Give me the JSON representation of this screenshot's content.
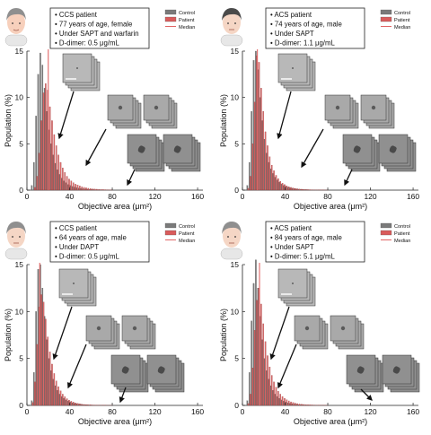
{
  "colors": {
    "control": "#7a7a7a",
    "patient": "#d95b5b",
    "median": "#e06666",
    "arrow": "#111111"
  },
  "chart_data": [
    {
      "type": "bar",
      "panel": "top-left",
      "patient_info": [
        "CCS patient",
        "77 years of age, female",
        "Under SAPT and warfarin",
        "D-dimer: 0.5 μg/mL"
      ],
      "legend": [
        "Control",
        "Patient",
        "Median"
      ],
      "xlabel": "Objective area (μm²)",
      "ylabel": "Population (%)",
      "xlim": [
        0,
        165
      ],
      "ylim": [
        0,
        15
      ],
      "xticks": [
        "0",
        "40",
        "80",
        "120",
        "160"
      ],
      "yticks": [
        "0",
        "5",
        "10",
        "15"
      ],
      "median_x": 20,
      "bin_width": 2,
      "series": [
        {
          "name": "Control",
          "values": [
            0,
            0,
            0.5,
            3.0,
            8.0,
            12.5,
            14.8,
            13.5,
            11.0,
            8.5,
            6.5,
            5.0,
            3.8,
            2.9,
            2.2,
            1.7,
            1.3,
            1.0,
            0.8,
            0.6,
            0.5,
            0.4,
            0.33,
            0.27,
            0.22,
            0.18,
            0.15,
            0.12,
            0.1,
            0.08,
            0.07,
            0.06,
            0.05,
            0.04,
            0.04,
            0.03,
            0.03,
            0.02,
            0.02,
            0.02
          ]
        },
        {
          "name": "Patient",
          "values": [
            0,
            0,
            0,
            0.3,
            1.5,
            4.0,
            7.5,
            10.5,
            11.5,
            10.8,
            9.0,
            7.5,
            6.0,
            4.8,
            3.8,
            3.0,
            2.4,
            1.9,
            1.5,
            1.2,
            1.0,
            0.8,
            0.65,
            0.55,
            0.45,
            0.37,
            0.3,
            0.25,
            0.2,
            0.17,
            0.14,
            0.12,
            0.1,
            0.08,
            0.07,
            0.06,
            0.05,
            0.04,
            0.03,
            0.03
          ]
        }
      ]
    },
    {
      "type": "bar",
      "panel": "top-right",
      "patient_info": [
        "ACS patient",
        "74 years of age, male",
        "Under SAPT",
        "D-dimer: 1.1 μg/mL"
      ],
      "legend": [
        "Control",
        "Patient",
        "Median"
      ],
      "xlabel": "Objective area (μm²)",
      "ylabel": "Population (%)",
      "xlim": [
        0,
        165
      ],
      "ylim": [
        0,
        15
      ],
      "xticks": [
        "0",
        "40",
        "80",
        "120",
        "160"
      ],
      "yticks": [
        "0",
        "5",
        "10",
        "15"
      ],
      "median_x": 14,
      "bin_width": 2,
      "series": [
        {
          "name": "Control",
          "values": [
            0,
            0,
            0.5,
            3.0,
            8.5,
            14.0,
            15.0,
            13.0,
            10.0,
            7.5,
            5.5,
            4.0,
            3.0,
            2.3,
            1.8,
            1.4,
            1.1,
            0.85,
            0.65,
            0.5,
            0.4,
            0.32,
            0.25,
            0.2,
            0.16,
            0.13,
            0.1,
            0.08,
            0.07,
            0.06,
            0.05,
            0.04,
            0.03,
            0.03,
            0.02,
            0.02,
            0.02,
            0.01,
            0.01,
            0.01
          ]
        },
        {
          "name": "Patient",
          "values": [
            0,
            0,
            0.2,
            1.5,
            5.0,
            9.5,
            14.5,
            13.8,
            11.0,
            8.5,
            6.3,
            4.8,
            3.6,
            2.7,
            2.1,
            1.6,
            1.25,
            0.95,
            0.75,
            0.6,
            0.47,
            0.37,
            0.3,
            0.24,
            0.19,
            0.15,
            0.12,
            0.1,
            0.08,
            0.07,
            0.06,
            0.05,
            0.04,
            0.03,
            0.03,
            0.02,
            0.02,
            0.02,
            0.01,
            0.01
          ]
        }
      ]
    },
    {
      "type": "bar",
      "panel": "bottom-left",
      "patient_info": [
        "CCS patient",
        "64 years of age, male",
        "Under DAPT",
        "D-dimer: 0.5 μg/mL"
      ],
      "legend": [
        "Control",
        "Patient",
        "Median"
      ],
      "xlabel": "Objective area (μm²)",
      "ylabel": "Population (%)",
      "xlim": [
        0,
        165
      ],
      "ylim": [
        0,
        15
      ],
      "xticks": [
        "0",
        "40",
        "80",
        "120",
        "160"
      ],
      "yticks": [
        "0",
        "5",
        "10",
        "15"
      ],
      "median_x": 12,
      "bin_width": 2,
      "series": [
        {
          "name": "Control",
          "values": [
            0,
            0,
            0.5,
            3.5,
            10.0,
            14.5,
            15.0,
            12.5,
            9.5,
            7.0,
            5.0,
            3.7,
            2.8,
            2.1,
            1.6,
            1.2,
            0.95,
            0.75,
            0.58,
            0.45,
            0.36,
            0.28,
            0.22,
            0.18,
            0.14,
            0.11,
            0.09,
            0.07,
            0.06,
            0.05,
            0.04,
            0.03,
            0.03,
            0.02,
            0.02,
            0.02,
            0.01,
            0.01,
            0.01,
            0.01
          ]
        },
        {
          "name": "Patient",
          "values": [
            0,
            0,
            0.3,
            2.5,
            6.5,
            10.5,
            11.8,
            11.0,
            9.2,
            7.3,
            5.7,
            4.4,
            3.4,
            2.6,
            2.0,
            1.55,
            1.2,
            0.93,
            0.72,
            0.56,
            0.44,
            0.35,
            0.27,
            0.21,
            0.17,
            0.13,
            0.1,
            0.08,
            0.07,
            0.06,
            0.05,
            0.04,
            0.03,
            0.03,
            0.02,
            0.02,
            0.02,
            0.01,
            0.01,
            0.01
          ]
        }
      ]
    },
    {
      "type": "bar",
      "panel": "bottom-right",
      "patient_info": [
        "ACS patient",
        "84 years of age, male",
        "Under SAPT",
        "D-dimer: 5.1 μg/mL"
      ],
      "legend": [
        "Control",
        "Patient",
        "Median"
      ],
      "xlabel": "Objective area (μm²)",
      "ylabel": "Population (%)",
      "xlim": [
        0,
        165
      ],
      "ylim": [
        0,
        15
      ],
      "xticks": [
        "0",
        "40",
        "80",
        "120",
        "160"
      ],
      "yticks": [
        "0",
        "5",
        "10",
        "15"
      ],
      "median_x": 16,
      "bin_width": 2,
      "series": [
        {
          "name": "Control",
          "values": [
            0,
            0,
            0.5,
            3.5,
            9.0,
            13.0,
            15.5,
            12.5,
            9.5,
            7.0,
            5.0,
            3.7,
            2.8,
            2.1,
            1.6,
            1.2,
            0.95,
            0.75,
            0.58,
            0.45,
            0.36,
            0.28,
            0.22,
            0.18,
            0.14,
            0.11,
            0.09,
            0.07,
            0.06,
            0.05,
            0.04,
            0.03,
            0.03,
            0.02,
            0.02,
            0.02,
            0.01,
            0.01,
            0.01,
            0.01
          ]
        },
        {
          "name": "Patient",
          "values": [
            0,
            0,
            0.2,
            1.2,
            4.0,
            8.0,
            11.2,
            12.5,
            10.8,
            8.7,
            6.8,
            5.3,
            4.1,
            3.2,
            2.5,
            1.95,
            1.5,
            1.2,
            0.95,
            0.75,
            0.6,
            0.48,
            0.38,
            0.3,
            0.24,
            0.19,
            0.15,
            0.12,
            0.1,
            0.08,
            0.07,
            0.06,
            0.05,
            0.04,
            0.03,
            0.03,
            0.02,
            0.02,
            0.02,
            0.01
          ]
        }
      ]
    }
  ]
}
